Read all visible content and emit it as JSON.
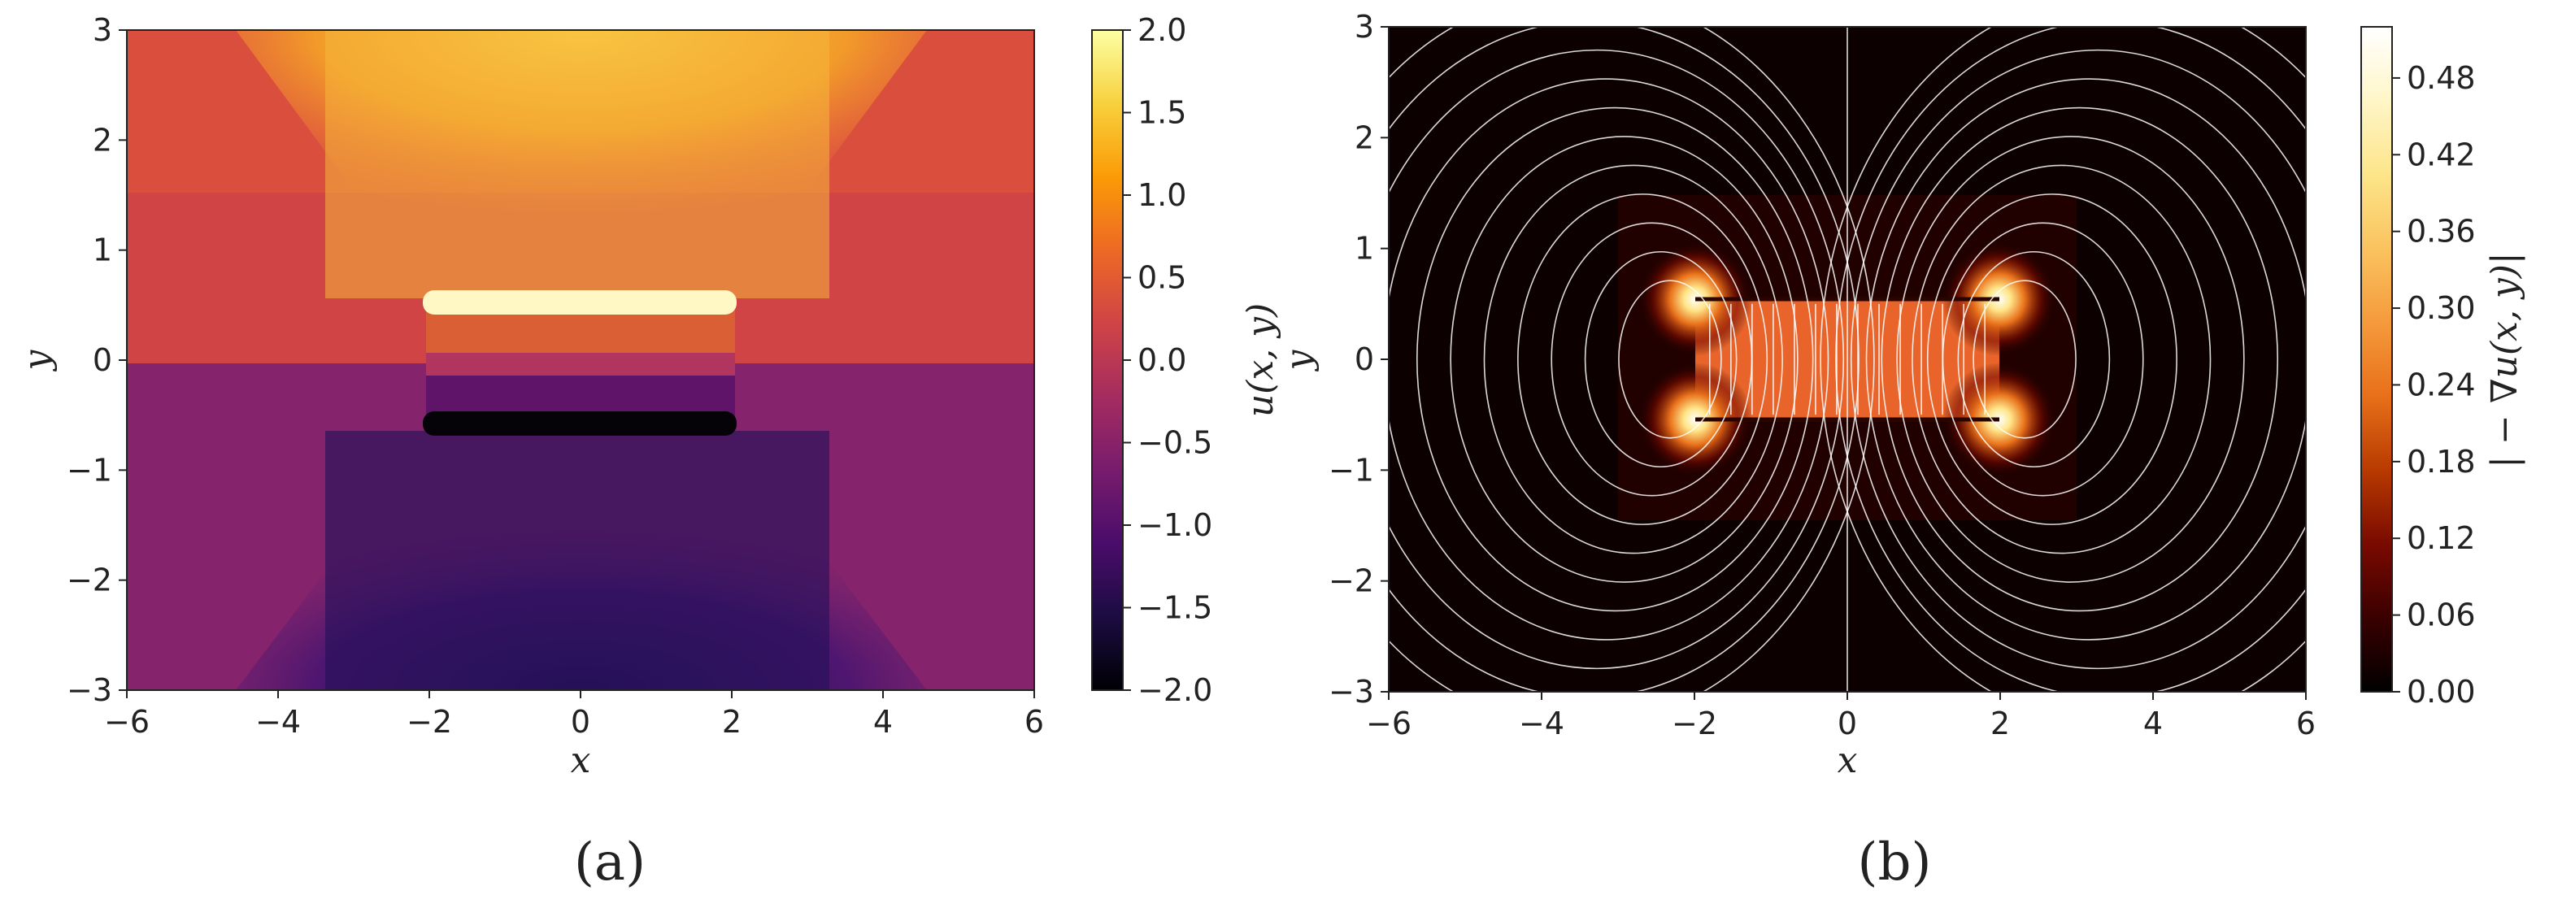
{
  "chart_data": [
    {
      "id": "a",
      "type": "heatmap",
      "panel_label": "(a)",
      "title": "",
      "xlabel": "x",
      "ylabel": "y",
      "xlim": [
        -6,
        6
      ],
      "ylim": [
        -3,
        3
      ],
      "xticks": [
        -6,
        -4,
        -2,
        0,
        2,
        4,
        6
      ],
      "xtick_labels": [
        "−6",
        "−4",
        "−2",
        "0",
        "2",
        "4",
        "6"
      ],
      "yticks": [
        -3,
        -2,
        -1,
        0,
        1,
        2,
        3
      ],
      "ytick_labels": [
        "−3",
        "−2",
        "−1",
        "0",
        "1",
        "2",
        "3"
      ],
      "field": "potential u(x,y) between two parallel plates",
      "plates": [
        {
          "x": [
            -2,
            2
          ],
          "y": 0.5,
          "u": 2.0
        },
        {
          "x": [
            -2,
            2
          ],
          "y": -0.5,
          "u": -2.0
        }
      ],
      "colorbar": {
        "label": "u(x, y)",
        "range": [
          -2.0,
          2.0
        ],
        "ticks": [
          2.0,
          1.5,
          1.0,
          0.5,
          0.0,
          -0.5,
          -1.0,
          -1.5,
          -2.0
        ],
        "tick_labels": [
          "2.0",
          "1.5",
          "1.0",
          "0.5",
          "0.0",
          "−0.5",
          "−1.0",
          "−1.5",
          "−2.0"
        ],
        "colormap": "inferno",
        "colors": [
          "#000004",
          "#1b0c41",
          "#4a0c6b",
          "#781c6d",
          "#a52c60",
          "#cf4446",
          "#ed6925",
          "#fb9b06",
          "#f7d13d",
          "#fcffa4"
        ]
      }
    },
    {
      "id": "b",
      "type": "heatmap",
      "panel_label": "(b)",
      "title": "",
      "xlabel": "x",
      "ylabel": "y",
      "xlim": [
        -6,
        6
      ],
      "ylim": [
        -3,
        3
      ],
      "xticks": [
        -6,
        -4,
        -2,
        0,
        2,
        4,
        6
      ],
      "xtick_labels": [
        "−6",
        "−4",
        "−2",
        "0",
        "2",
        "4",
        "6"
      ],
      "yticks": [
        -3,
        -2,
        -1,
        0,
        1,
        2,
        3
      ],
      "ytick_labels": [
        "−3",
        "−2",
        "−1",
        "0",
        "1",
        "2",
        "3"
      ],
      "field": "field magnitude |−∇u(x,y)| with streamlines",
      "uniform_region": {
        "x": [
          -2,
          2
        ],
        "y": [
          -0.5,
          0.5
        ],
        "value": 0.27
      },
      "edge_hotspots": [
        [
          -2,
          0.5
        ],
        [
          2,
          0.5
        ],
        [
          -2,
          -0.5
        ],
        [
          2,
          -0.5
        ]
      ],
      "colorbar": {
        "label": "| − ∇u(x, y)|",
        "range": [
          0.0,
          0.52
        ],
        "ticks": [
          0.48,
          0.42,
          0.36,
          0.3,
          0.24,
          0.18,
          0.12,
          0.06,
          0.0
        ],
        "tick_labels": [
          "0.48",
          "0.42",
          "0.36",
          "0.30",
          "0.24",
          "0.18",
          "0.12",
          "0.06",
          "0.00"
        ],
        "colormap": "afmhot",
        "colors": [
          "#000000",
          "#3a0000",
          "#7a0a00",
          "#b83a00",
          "#e8701a",
          "#f59a3c",
          "#fac35f",
          "#fde58a",
          "#fff6c8",
          "#ffffff"
        ]
      }
    }
  ]
}
